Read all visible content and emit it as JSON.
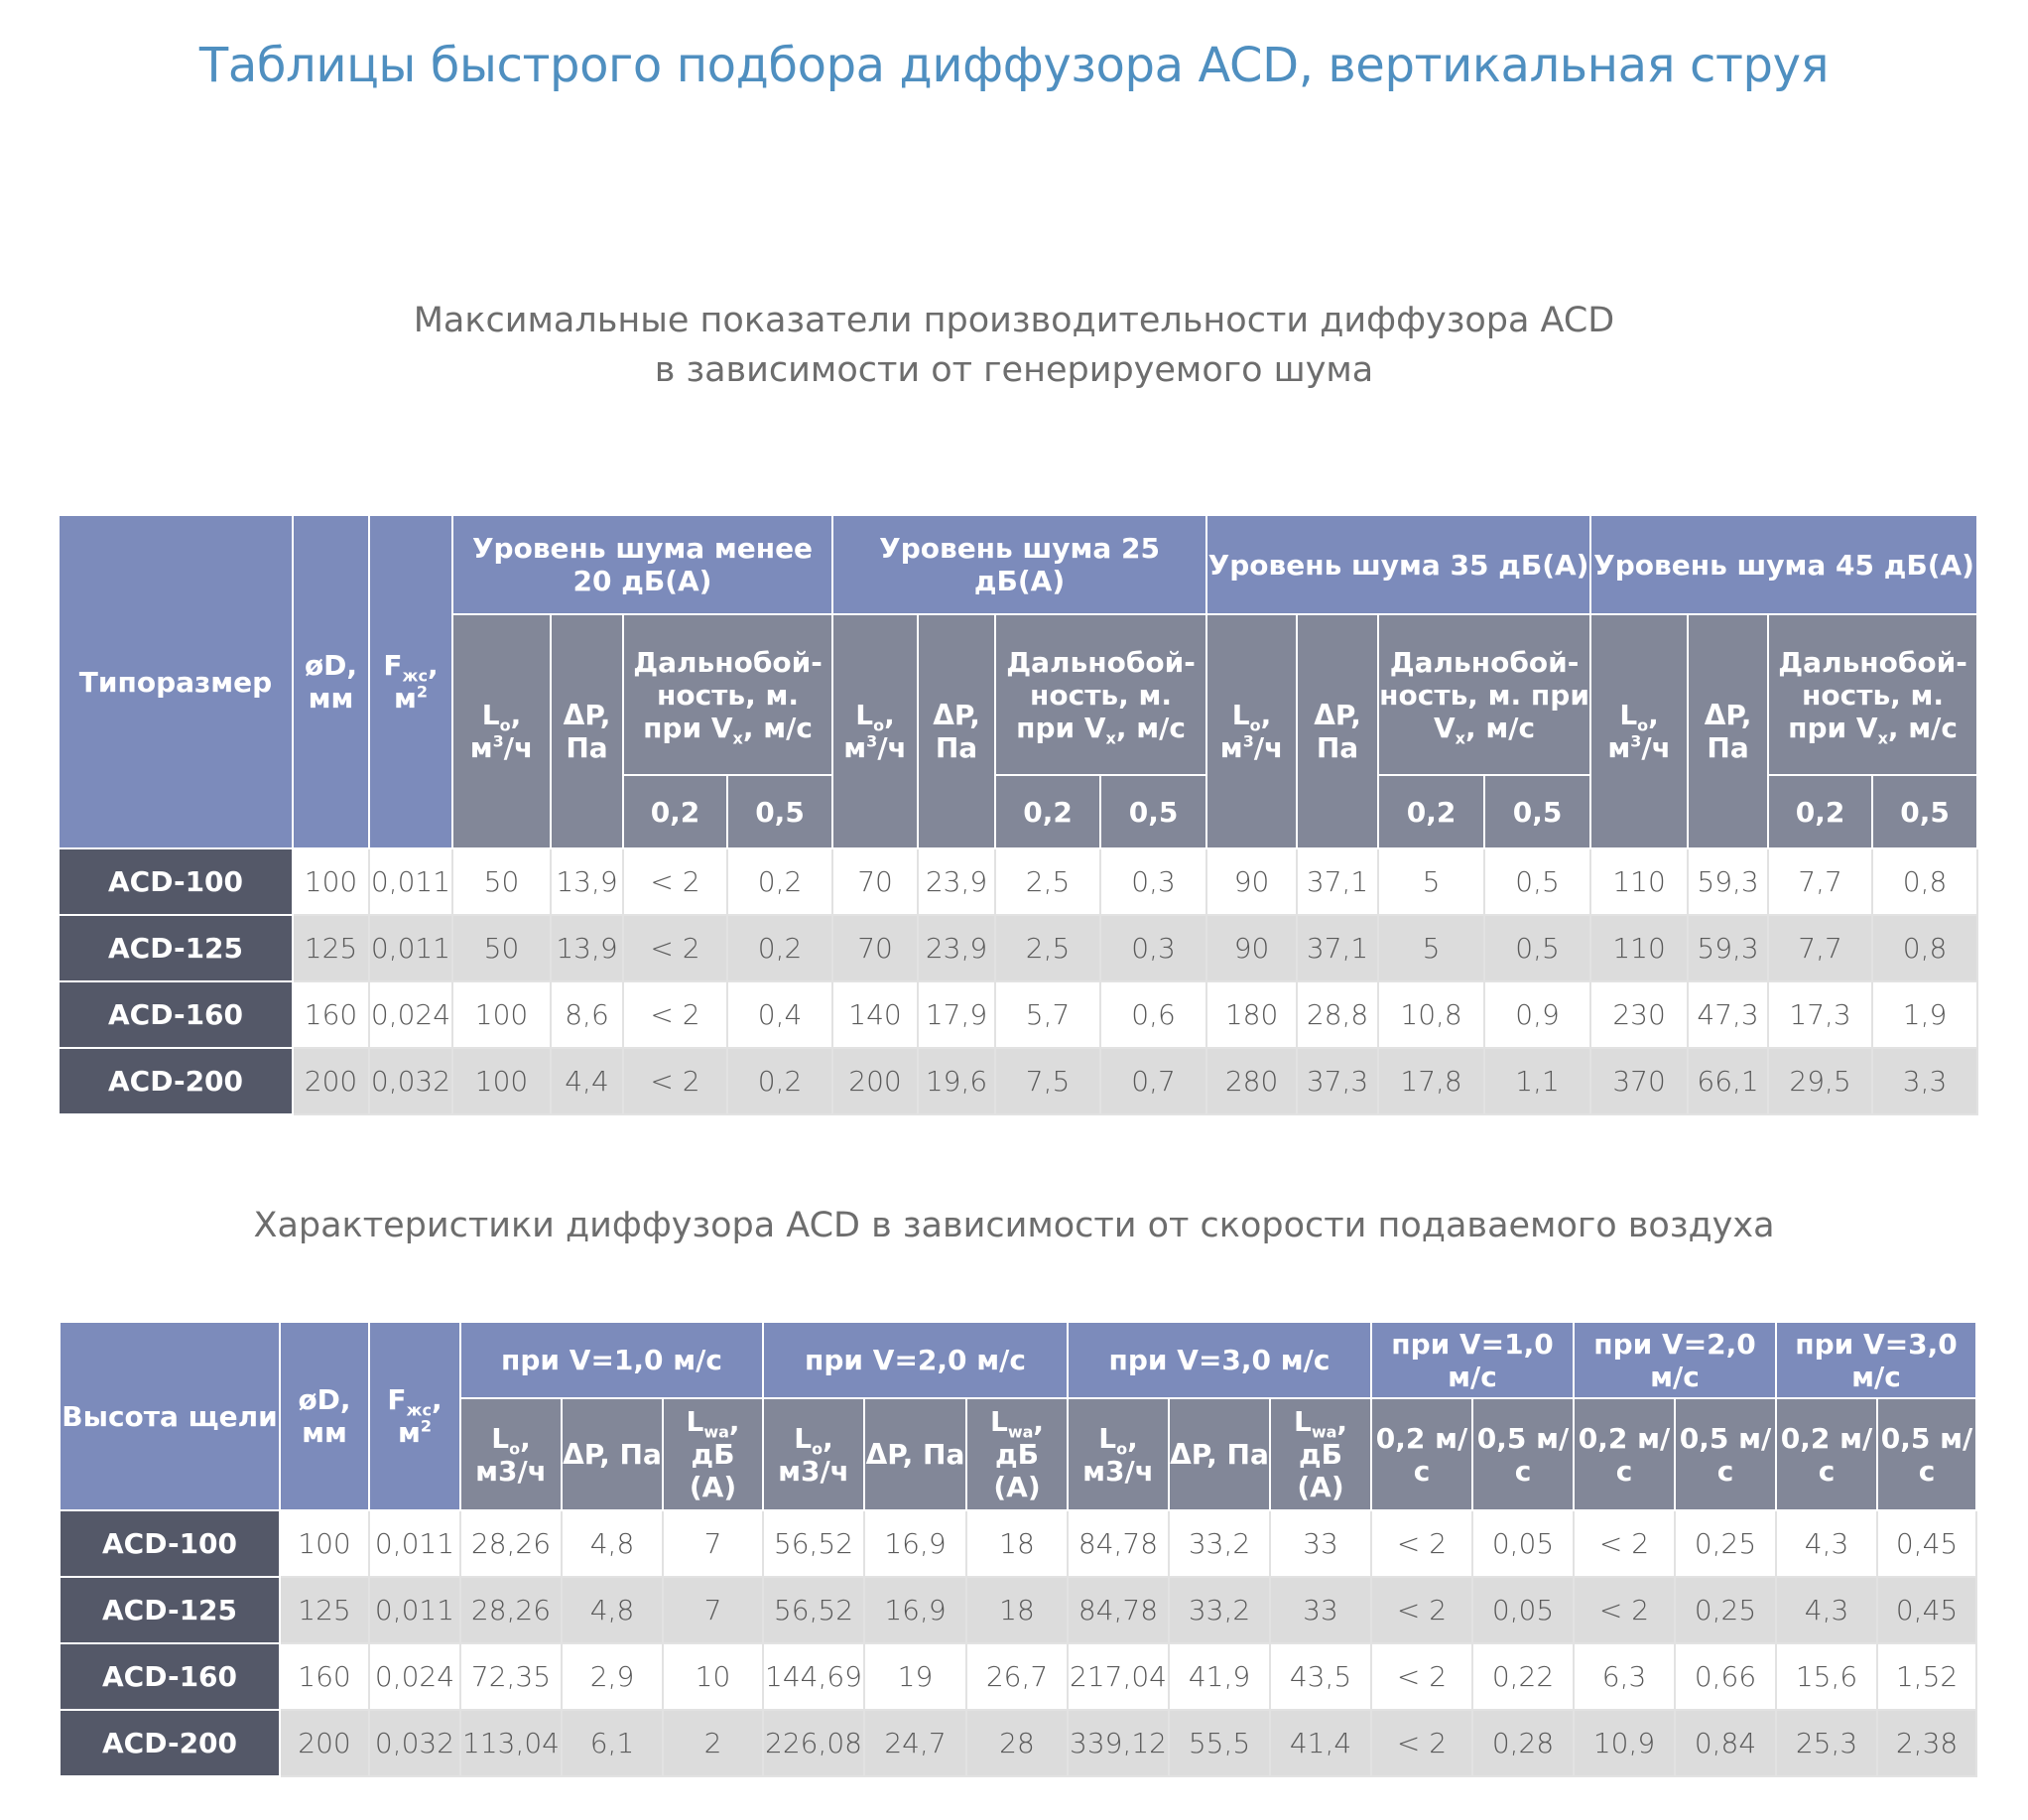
{
  "title": "Таблицы быстрого подбора диффузора ACD, вертикальная струя",
  "table1": {
    "caption_line1": "Максимальные показатели производительности диффузора ACD",
    "caption_line2": "в зависимости от генерируемого шума",
    "h_size": "Типоразмер",
    "h_d": "øD, мм",
    "h_f": "F",
    "h_f_sub": "жс",
    "h_f_unit": ", м",
    "h_f_sup": "2",
    "groups": [
      "Уровень шума менее 20 дБ(А)",
      "Уровень шума 25 дБ(А)",
      "Уровень шума 35 дБ(А)",
      "Уровень шума 45 дБ(А)"
    ],
    "h_l": "L",
    "h_l_sub": "o",
    "h_l_unit1": ",",
    "h_l_unit2": "м",
    "h_l_sup": "3",
    "h_l_unit3": "/ч",
    "h_dp": "ΔP, Па",
    "h_range_1": "Дальнобой-ность, м. при V",
    "h_range_sub": "x",
    "h_range_2": ", м/с",
    "h_v1": "0,2",
    "h_v2": "0,5",
    "rows": [
      [
        "ACD-100",
        "100",
        "0,011",
        "50",
        "13,9",
        "< 2",
        "0,2",
        "70",
        "23,9",
        "2,5",
        "0,3",
        "90",
        "37,1",
        "5",
        "0,5",
        "110",
        "59,3",
        "7,7",
        "0,8"
      ],
      [
        "ACD-125",
        "125",
        "0,011",
        "50",
        "13,9",
        "< 2",
        "0,2",
        "70",
        "23,9",
        "2,5",
        "0,3",
        "90",
        "37,1",
        "5",
        "0,5",
        "110",
        "59,3",
        "7,7",
        "0,8"
      ],
      [
        "ACD-160",
        "160",
        "0,024",
        "100",
        "8,6",
        "< 2",
        "0,4",
        "140",
        "17,9",
        "5,7",
        "0,6",
        "180",
        "28,8",
        "10,8",
        "0,9",
        "230",
        "47,3",
        "17,3",
        "1,9"
      ],
      [
        "ACD-200",
        "200",
        "0,032",
        "100",
        "4,4",
        "< 2",
        "0,2",
        "200",
        "19,6",
        "7,5",
        "0,7",
        "280",
        "37,3",
        "17,8",
        "1,1",
        "370",
        "66,1",
        "29,5",
        "3,3"
      ]
    ]
  },
  "table2": {
    "caption": "Характеристики диффузора ACD в зависимости от скорости подаваемого воздуха",
    "h_size": "Высота щели",
    "groups": [
      "при V=1,0 м/с",
      "при V=2,0 м/с",
      "при V=3,0 м/с",
      "при V=1,0 м/с",
      "при V=2,0 м/с",
      "при V=3,0 м/с"
    ],
    "h_l": "L",
    "h_l_sub": "o",
    "h_l_unit": ", м3/ч",
    "h_dp": "ΔP, Па",
    "h_lwa": "L",
    "h_lwa_sub": "wa",
    "h_lwa_unit": ", дБ (А)",
    "h_v1": "0,2 м/с",
    "h_v2": "0,5 м/с",
    "rows": [
      [
        "ACD-100",
        "100",
        "0,011",
        "28,26",
        "4,8",
        "7",
        "56,52",
        "16,9",
        "18",
        "84,78",
        "33,2",
        "33",
        "< 2",
        "0,05",
        "< 2",
        "0,25",
        "4,3",
        "0,45"
      ],
      [
        "ACD-125",
        "125",
        "0,011",
        "28,26",
        "4,8",
        "7",
        "56,52",
        "16,9",
        "18",
        "84,78",
        "33,2",
        "33",
        "< 2",
        "0,05",
        "< 2",
        "0,25",
        "4,3",
        "0,45"
      ],
      [
        "ACD-160",
        "160",
        "0,024",
        "72,35",
        "2,9",
        "10",
        "144,69",
        "19",
        "26,7",
        "217,04",
        "41,9",
        "43,5",
        "< 2",
        "0,22",
        "6,3",
        "0,66",
        "15,6",
        "1,52"
      ],
      [
        "ACD-200",
        "200",
        "0,032",
        "113,04",
        "6,1",
        "2",
        "226,08",
        "24,7",
        "28",
        "339,12",
        "55,5",
        "41,4",
        "< 2",
        "0,28",
        "10,9",
        "0,84",
        "25,3",
        "2,38"
      ]
    ]
  },
  "colors": {
    "title": "#4f8fc0",
    "header_blue": "#7c8bbb",
    "header_grey": "#828798",
    "row_label": "#545868",
    "row_alt": "#dcdcdc"
  }
}
